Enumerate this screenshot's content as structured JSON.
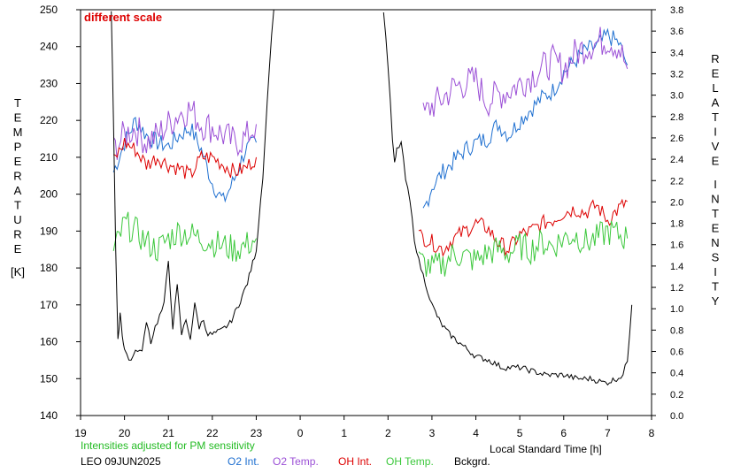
{
  "chart_data": {
    "type": "line",
    "title": "",
    "annotation": "different scale",
    "annotation_color": "#dd0000",
    "xlabel": "Local Standard Time [h]",
    "x_ticks": [
      "19",
      "20",
      "21",
      "22",
      "23",
      "0",
      "1",
      "2",
      "3",
      "4",
      "5",
      "6",
      "7",
      "8"
    ],
    "xlim": [
      19,
      32
    ],
    "y_left": {
      "label_letters": [
        "T",
        "E",
        "M",
        "P",
        "E",
        "R",
        "A",
        "T",
        "U",
        "R",
        "E"
      ],
      "unit": "[K]",
      "ticks": [
        "140",
        "150",
        "160",
        "170",
        "180",
        "190",
        "200",
        "210",
        "220",
        "230",
        "240",
        "250"
      ],
      "lim": [
        140,
        250
      ]
    },
    "y_right": {
      "label_word1": [
        "R",
        "E",
        "L",
        "A",
        "T",
        "I",
        "V",
        "E"
      ],
      "label_word2": [
        "I",
        "N",
        "T",
        "E",
        "N",
        "S",
        "I",
        "T",
        "Y"
      ],
      "ticks": [
        "0.0",
        "0.2",
        "0.4",
        "0.6",
        "0.8",
        "1.0",
        "1.2",
        "1.4",
        "1.6",
        "1.8",
        "2.0",
        "2.2",
        "2.4",
        "2.6",
        "2.8",
        "3.0",
        "3.2",
        "3.4",
        "3.6",
        "3.8"
      ],
      "lim": [
        0.0,
        3.8
      ]
    },
    "footnote": "Intensities adjusted for PM sensitivity",
    "footnote_color": "#22bb22",
    "station": "LEO 09JUN2025",
    "series": [
      {
        "name": "O2 Int.",
        "color": "#1e6fd0",
        "axis": "left",
        "x": [
          19.75,
          20.0,
          20.25,
          20.5,
          20.75,
          21.0,
          21.25,
          21.5,
          21.75,
          22.0,
          22.25,
          22.5,
          22.75,
          23.0,
          26.8,
          27.0,
          27.25,
          27.5,
          27.75,
          28.0,
          28.25,
          28.5,
          28.75,
          29.0,
          29.25,
          29.5,
          29.75,
          30.0,
          30.25,
          30.5,
          30.75,
          31.0,
          31.25,
          31.45
        ],
        "y": [
          206,
          214,
          220,
          216,
          214,
          213,
          216,
          218,
          212,
          203,
          198,
          204,
          212,
          214,
          195,
          202,
          206,
          209,
          212,
          214,
          215,
          219,
          216,
          220,
          223,
          226,
          228,
          233,
          236,
          239,
          240,
          243,
          241,
          235
        ]
      },
      {
        "name": "O2 Temp.",
        "color": "#9b4fd6",
        "axis": "left",
        "x": [
          19.75,
          20.0,
          20.25,
          20.5,
          20.75,
          21.0,
          21.25,
          21.5,
          21.75,
          22.0,
          22.25,
          22.5,
          22.75,
          23.0,
          26.8,
          27.0,
          27.25,
          27.5,
          27.75,
          28.0,
          28.25,
          28.5,
          28.75,
          29.0,
          29.25,
          29.5,
          29.75,
          30.0,
          30.25,
          30.5,
          30.75,
          31.0,
          31.25,
          31.45
        ],
        "y": [
          212,
          216,
          218,
          214,
          216,
          219,
          222,
          223,
          219,
          218,
          216,
          214,
          215,
          219,
          221,
          224,
          226,
          229,
          230,
          231,
          225,
          227,
          228,
          230,
          232,
          234,
          236,
          234,
          238,
          240,
          241,
          242,
          240,
          234
        ]
      },
      {
        "name": "OH Int.",
        "color": "#dd0000",
        "axis": "left",
        "x": [
          19.75,
          20.0,
          20.25,
          20.5,
          20.75,
          21.0,
          21.25,
          21.5,
          21.75,
          22.0,
          22.25,
          22.5,
          22.75,
          23.0,
          26.7,
          27.0,
          27.25,
          27.5,
          27.75,
          28.0,
          28.25,
          28.5,
          28.75,
          29.0,
          29.25,
          29.5,
          29.75,
          30.0,
          30.25,
          30.5,
          30.75,
          31.0,
          31.25,
          31.45
        ],
        "y": [
          209,
          214,
          212,
          208,
          210,
          208,
          207,
          205,
          210,
          210,
          208,
          206,
          207,
          210,
          189,
          187,
          185,
          188,
          190,
          192,
          191,
          187,
          185,
          189,
          190,
          192,
          193,
          195,
          196,
          195,
          197,
          193,
          196,
          198
        ]
      },
      {
        "name": "OH Temp.",
        "color": "#3cc83c",
        "axis": "left",
        "x": [
          19.75,
          20.0,
          20.25,
          20.5,
          20.75,
          21.0,
          21.25,
          21.5,
          21.75,
          22.0,
          22.25,
          22.5,
          22.75,
          23.0,
          26.7,
          27.0,
          27.25,
          27.5,
          27.75,
          28.0,
          28.25,
          28.5,
          28.75,
          29.0,
          29.25,
          29.5,
          29.75,
          30.0,
          30.25,
          30.5,
          30.75,
          31.0,
          31.25,
          31.45
        ],
        "y": [
          184,
          192,
          190,
          187,
          185,
          188,
          190,
          189,
          188,
          187,
          186,
          185,
          186,
          188,
          182,
          180,
          181,
          184,
          183,
          182,
          184,
          185,
          184,
          186,
          185,
          187,
          186,
          188,
          189,
          187,
          188,
          190,
          189,
          188
        ]
      },
      {
        "name": "Bckgrd.",
        "color": "#000000",
        "axis": "left",
        "x": [
          19.7,
          19.75,
          19.8,
          19.85,
          19.9,
          19.95,
          20.0,
          20.1,
          20.2,
          20.3,
          20.4,
          20.5,
          20.6,
          20.7,
          20.8,
          20.9,
          21.0,
          21.1,
          21.2,
          21.3,
          21.4,
          21.5,
          21.6,
          21.7,
          21.8,
          21.9,
          22.0,
          22.2,
          22.4,
          22.6,
          22.8,
          23.0,
          23.15,
          23.3,
          23.4,
          25.9,
          26.0,
          26.1,
          26.15,
          26.2,
          26.3,
          26.4,
          26.5,
          26.6,
          26.7,
          26.8,
          26.9,
          27.0,
          27.2,
          27.4,
          27.6,
          27.8,
          28.0,
          28.3,
          28.6,
          29.0,
          29.3,
          29.6,
          30.0,
          30.3,
          30.6,
          30.9,
          31.0,
          31.2,
          31.35,
          31.45,
          31.55
        ],
        "y": [
          250,
          220,
          185,
          160,
          168,
          162,
          158,
          155,
          156,
          158,
          157,
          166,
          160,
          164,
          167,
          170,
          182,
          164,
          175,
          162,
          166,
          161,
          170,
          164,
          166,
          162,
          162,
          163,
          165,
          170,
          176,
          185,
          205,
          235,
          250,
          250,
          235,
          215,
          208,
          212,
          214,
          204,
          198,
          188,
          182,
          178,
          174,
          170,
          165,
          162,
          160,
          158,
          156,
          155,
          153,
          153,
          152,
          151,
          151,
          150,
          150,
          149,
          149,
          150,
          151,
          155,
          170
        ]
      }
    ],
    "grid": false,
    "legend": "bottom"
  }
}
